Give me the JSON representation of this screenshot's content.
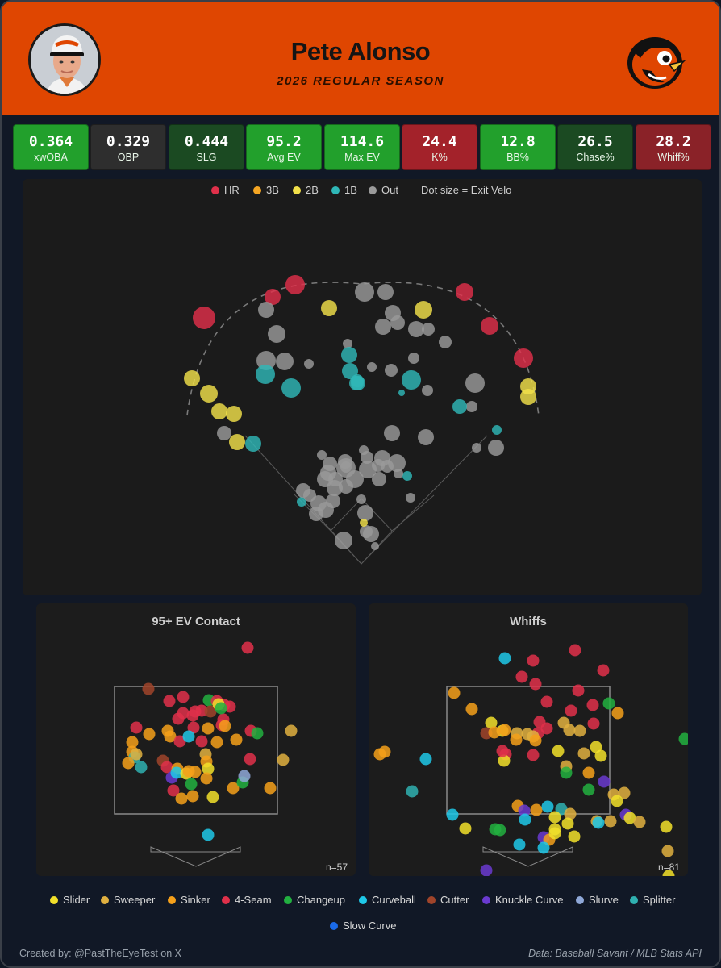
{
  "header": {
    "player_name": "Pete Alonso",
    "season": "2026 REGULAR SEASON",
    "accent_color": "#df4601"
  },
  "stats": [
    {
      "value": "0.364",
      "label": "xwOBA",
      "color": "#22a02c"
    },
    {
      "value": "0.329",
      "label": "OBP",
      "color": "#2e2e2e"
    },
    {
      "value": "0.444",
      "label": "SLG",
      "color": "#1b4a22"
    },
    {
      "value": "95.2",
      "label": "Avg EV",
      "color": "#22a02c"
    },
    {
      "value": "114.6",
      "label": "Max EV",
      "color": "#22a02c"
    },
    {
      "value": "24.4",
      "label": "K%",
      "color": "#a3222a"
    },
    {
      "value": "12.8",
      "label": "BB%",
      "color": "#22a02c"
    },
    {
      "value": "26.5",
      "label": "Chase%",
      "color": "#1b4a22"
    },
    {
      "value": "28.2",
      "label": "Whiff%",
      "color": "#8a2228"
    }
  ],
  "spray_legend": {
    "items": [
      {
        "label": "HR",
        "color": "#e0304a"
      },
      {
        "label": "3B",
        "color": "#f5a623"
      },
      {
        "label": "2B",
        "color": "#f2e04a"
      },
      {
        "label": "1B",
        "color": "#2fb7b7"
      },
      {
        "label": "Out",
        "color": "#9a9a9a"
      }
    ],
    "size_note": "Dot size = Exit Velo"
  },
  "panels": {
    "contact": {
      "title": "95+ EV Contact",
      "n": "n=57"
    },
    "whiffs": {
      "title": "Whiffs",
      "n": "n=81"
    }
  },
  "pitch_legend": [
    {
      "label": "Slider",
      "color": "#f2e02a"
    },
    {
      "label": "Sweeper",
      "color": "#e0b040"
    },
    {
      "label": "Sinker",
      "color": "#f5a01a"
    },
    {
      "label": "4-Seam",
      "color": "#e0304a"
    },
    {
      "label": "Changeup",
      "color": "#22b040"
    },
    {
      "label": "Curveball",
      "color": "#1ec8e8"
    },
    {
      "label": "Cutter",
      "color": "#a0442a"
    },
    {
      "label": "Knuckle Curve",
      "color": "#6a3ad0"
    },
    {
      "label": "Slurve",
      "color": "#8fa8d8"
    },
    {
      "label": "Splitter",
      "color": "#2fb0b0"
    },
    {
      "label": "Slow Curve",
      "color": "#1a6ae8"
    }
  ],
  "footer": {
    "credit": "Created by: @PastTheEyeTest on X",
    "source": "Data: Baseball Savant / MLB Stats API"
  }
}
